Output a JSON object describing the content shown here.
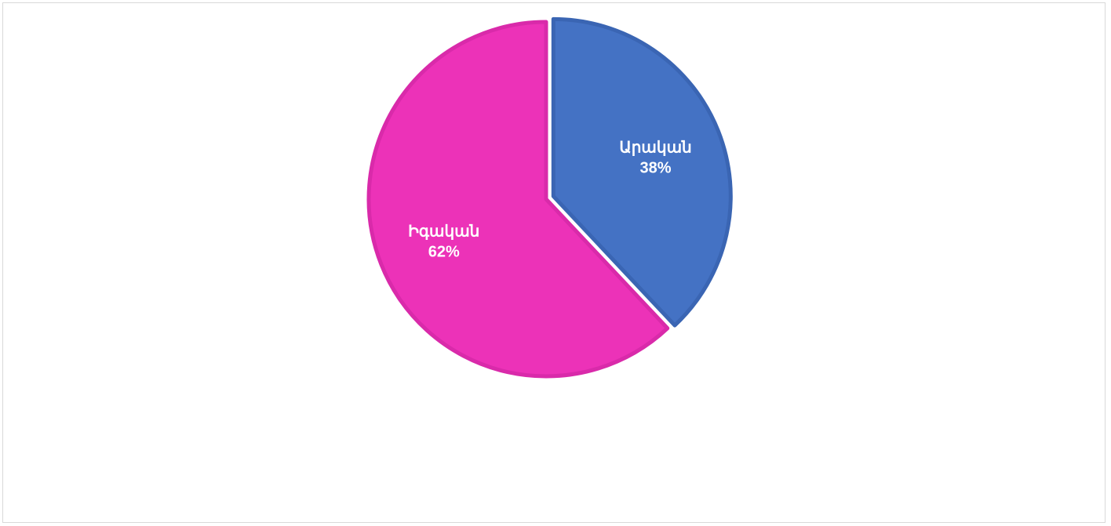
{
  "chart_data": {
    "type": "pie",
    "title": "",
    "slices": [
      {
        "label": "Արական",
        "value": 38,
        "value_label": "38%",
        "color": "#4472C4",
        "border_color": "#3A65B3",
        "exploded": true
      },
      {
        "label": "Իգական",
        "value": 62,
        "value_label": "62%",
        "color": "#EC32B8",
        "border_color": "#D92AAA",
        "exploded": false
      }
    ],
    "start_angle_deg": 0,
    "direction": "clockwise",
    "legend": "none",
    "data_labels": "inside"
  }
}
